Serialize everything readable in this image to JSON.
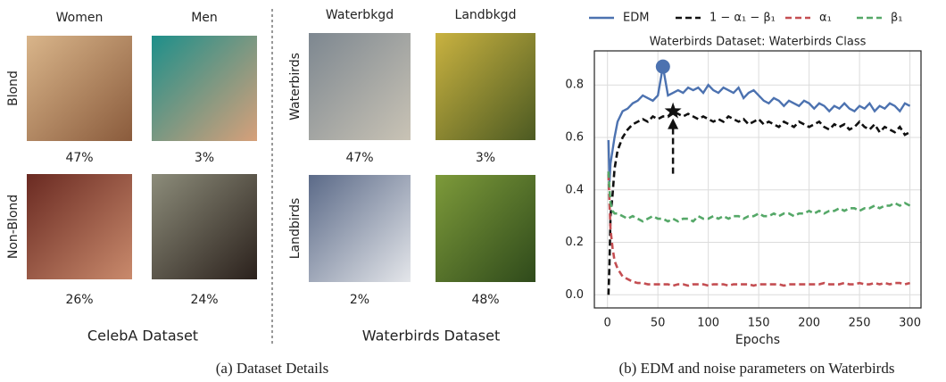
{
  "celeba": {
    "columns": [
      "Women",
      "Men"
    ],
    "rows": [
      "Blond",
      "Non-Blond"
    ],
    "percentages": [
      [
        "47%",
        "3%"
      ],
      [
        "26%",
        "24%"
      ]
    ],
    "title": "CelebA Dataset"
  },
  "waterbirds": {
    "columns": [
      "Waterbkgd",
      "Landbkgd"
    ],
    "rows": [
      "Waterbirds",
      "Landbirds"
    ],
    "percentages": [
      [
        "47%",
        "3%"
      ],
      [
        "2%",
        "48%"
      ]
    ],
    "title": "Waterbirds Dataset"
  },
  "captions": [
    "(a) Dataset Details",
    "(b) EDM and noise parameters on Waterbirds"
  ],
  "chart_data": {
    "type": "line",
    "title": "Waterbirds Dataset: Waterbirds Class",
    "x_label": "Epochs",
    "x": [
      1,
      2,
      3,
      5,
      7,
      10,
      15,
      20,
      25,
      30,
      35,
      40,
      45,
      50,
      55,
      60,
      65,
      70,
      75,
      80,
      85,
      90,
      95,
      100,
      105,
      110,
      115,
      120,
      125,
      130,
      135,
      140,
      145,
      150,
      155,
      160,
      165,
      170,
      175,
      180,
      185,
      190,
      195,
      200,
      205,
      210,
      215,
      220,
      225,
      230,
      235,
      240,
      245,
      250,
      255,
      260,
      265,
      270,
      275,
      280,
      285,
      290,
      295,
      300
    ],
    "series": [
      {
        "name": "EDM",
        "color": "#4c72b0",
        "dashed": false,
        "marker_at": 14,
        "marker": "circle",
        "values": [
          0.59,
          0.43,
          0.5,
          0.55,
          0.6,
          0.66,
          0.7,
          0.71,
          0.73,
          0.74,
          0.76,
          0.75,
          0.74,
          0.76,
          0.87,
          0.76,
          0.77,
          0.78,
          0.77,
          0.79,
          0.78,
          0.79,
          0.77,
          0.8,
          0.78,
          0.77,
          0.79,
          0.78,
          0.77,
          0.79,
          0.75,
          0.77,
          0.78,
          0.76,
          0.74,
          0.73,
          0.75,
          0.74,
          0.72,
          0.74,
          0.73,
          0.72,
          0.74,
          0.73,
          0.71,
          0.73,
          0.72,
          0.7,
          0.72,
          0.71,
          0.73,
          0.71,
          0.7,
          0.72,
          0.71,
          0.73,
          0.7,
          0.72,
          0.71,
          0.73,
          0.72,
          0.7,
          0.73,
          0.72
        ]
      },
      {
        "name": "1 − α₁ − β₁",
        "color": "#111111",
        "dashed": true,
        "marker_at": 16,
        "marker": "star",
        "values": [
          0,
          0.12,
          0.3,
          0.38,
          0.48,
          0.55,
          0.6,
          0.63,
          0.65,
          0.66,
          0.67,
          0.66,
          0.68,
          0.67,
          0.68,
          0.68,
          0.7,
          0.69,
          0.68,
          0.69,
          0.68,
          0.67,
          0.68,
          0.67,
          0.66,
          0.67,
          0.66,
          0.68,
          0.67,
          0.66,
          0.67,
          0.65,
          0.66,
          0.67,
          0.65,
          0.66,
          0.65,
          0.64,
          0.66,
          0.65,
          0.64,
          0.66,
          0.65,
          0.64,
          0.65,
          0.66,
          0.64,
          0.63,
          0.65,
          0.64,
          0.65,
          0.63,
          0.64,
          0.66,
          0.64,
          0.63,
          0.65,
          0.62,
          0.64,
          0.63,
          0.62,
          0.64,
          0.61,
          0.62
        ]
      },
      {
        "name": "α₁",
        "color": "#c44e52",
        "dashed": true,
        "values": [
          0.46,
          0.35,
          0.25,
          0.18,
          0.13,
          0.1,
          0.07,
          0.06,
          0.05,
          0.045,
          0.045,
          0.04,
          0.04,
          0.04,
          0.04,
          0.04,
          0.035,
          0.04,
          0.04,
          0.035,
          0.04,
          0.04,
          0.04,
          0.035,
          0.04,
          0.04,
          0.04,
          0.035,
          0.04,
          0.04,
          0.04,
          0.04,
          0.035,
          0.04,
          0.04,
          0.04,
          0.04,
          0.04,
          0.035,
          0.04,
          0.04,
          0.04,
          0.04,
          0.04,
          0.04,
          0.04,
          0.045,
          0.04,
          0.04,
          0.04,
          0.045,
          0.04,
          0.04,
          0.045,
          0.04,
          0.04,
          0.045,
          0.04,
          0.045,
          0.04,
          0.045,
          0.045,
          0.04,
          0.045
        ]
      },
      {
        "name": "β₁",
        "color": "#55a868",
        "dashed": true,
        "values": [
          0.47,
          0.4,
          0.35,
          0.32,
          0.31,
          0.31,
          0.3,
          0.29,
          0.3,
          0.29,
          0.28,
          0.29,
          0.3,
          0.29,
          0.29,
          0.28,
          0.29,
          0.28,
          0.29,
          0.29,
          0.28,
          0.3,
          0.29,
          0.29,
          0.3,
          0.29,
          0.3,
          0.29,
          0.3,
          0.3,
          0.29,
          0.3,
          0.3,
          0.31,
          0.3,
          0.3,
          0.31,
          0.3,
          0.31,
          0.31,
          0.3,
          0.31,
          0.31,
          0.32,
          0.31,
          0.32,
          0.31,
          0.32,
          0.32,
          0.33,
          0.32,
          0.33,
          0.33,
          0.32,
          0.33,
          0.33,
          0.34,
          0.33,
          0.34,
          0.34,
          0.35,
          0.34,
          0.35,
          0.34
        ]
      }
    ],
    "xlim": [
      -13,
      311
    ],
    "xticks": [
      0,
      50,
      100,
      150,
      200,
      250,
      300
    ],
    "ylim": [
      -0.05,
      0.93
    ],
    "yticks": [
      {
        "value": 0,
        "label": "0.0"
      },
      0.2,
      0.4,
      0.6,
      0.8
    ],
    "grid": true
  }
}
